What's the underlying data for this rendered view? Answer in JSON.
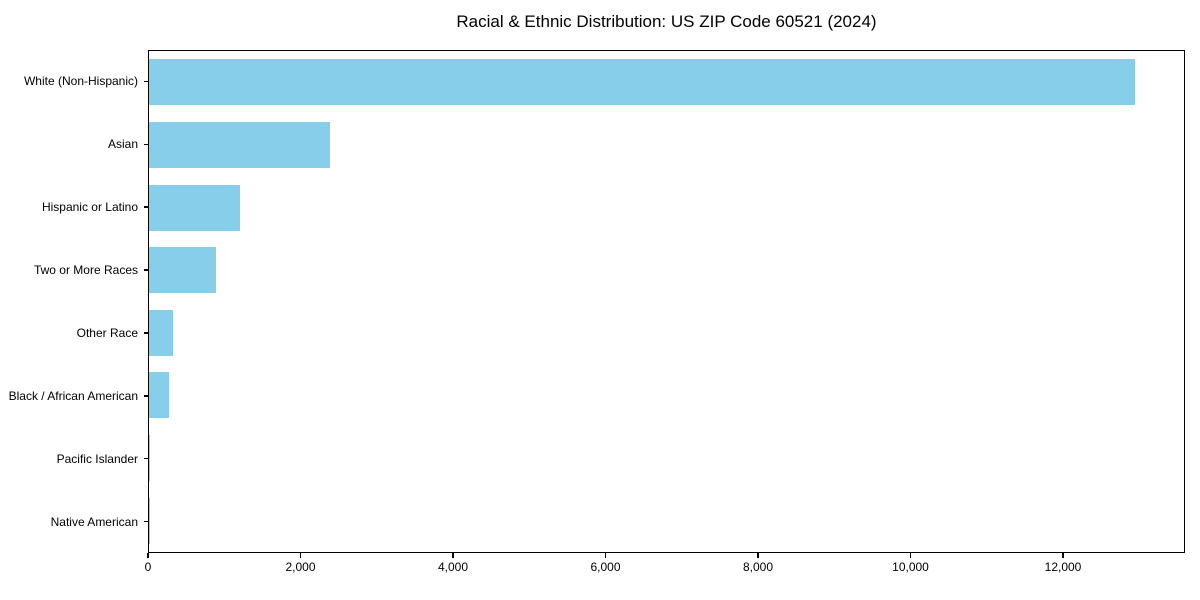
{
  "chart_data": {
    "type": "bar",
    "orientation": "horizontal",
    "title": "Racial & Ethnic Distribution: US ZIP Code 60521 (2024)",
    "categories": [
      "White (Non-Hispanic)",
      "Asian",
      "Hispanic or Latino",
      "Two or More Races",
      "Other Race",
      "Black / African American",
      "Pacific Islander",
      "Native American"
    ],
    "values": [
      12950,
      2380,
      1200,
      875,
      310,
      260,
      15,
      5
    ],
    "xlabel": "",
    "ylabel": "",
    "xlim": [
      0,
      13600
    ],
    "xticks": [
      0,
      2000,
      4000,
      6000,
      8000,
      10000,
      12000
    ],
    "xtick_labels": [
      "0",
      "2,000",
      "4,000",
      "6,000",
      "8,000",
      "10,000",
      "12,000"
    ],
    "bar_color": "#87CEEB",
    "background_color": "#ffffff",
    "text_color": "#000000",
    "grid": false,
    "legend": null
  }
}
